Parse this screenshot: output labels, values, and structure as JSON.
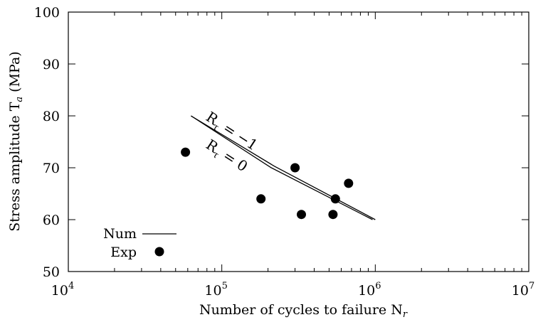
{
  "chart_data": {
    "type": "scatter",
    "xlabel": "Number of cycles to failure N",
    "xlabel_sub": "r",
    "ylabel": "Stress amplitude T",
    "ylabel_sub": "a",
    "ylabel_unit": "(MPa)",
    "x_scale": "log",
    "xlim": [
      10000,
      10000000
    ],
    "ylim": [
      50,
      100
    ],
    "x_ticks": [
      {
        "value": 10000,
        "base": "10",
        "exp": "4"
      },
      {
        "value": 100000,
        "base": "10",
        "exp": "5"
      },
      {
        "value": 1000000,
        "base": "10",
        "exp": "6"
      },
      {
        "value": 10000000,
        "base": "10",
        "exp": "7"
      }
    ],
    "y_ticks": [
      50,
      60,
      70,
      80,
      90,
      100
    ],
    "grid": false,
    "legend_position": "bottom-left",
    "series": [
      {
        "name": "Num",
        "style": "line",
        "annotation": "R = −1",
        "annotation_sub": "τ",
        "x": [
          63000,
          220000,
          1000000
        ],
        "y": [
          80.0,
          70.3,
          60.0
        ]
      },
      {
        "name": "Num",
        "style": "line",
        "annotation": "R = 0",
        "annotation_sub": "τ",
        "x": [
          63000,
          210000,
          960000
        ],
        "y": [
          80.0,
          70.0,
          60.0
        ]
      },
      {
        "name": "Exp",
        "style": "marker",
        "x": [
          58000,
          180000,
          300000,
          330000,
          530000,
          550000,
          670000
        ],
        "y": [
          73,
          64,
          70,
          61,
          61,
          64,
          67
        ]
      }
    ],
    "legend": [
      {
        "label": "Num",
        "style": "line"
      },
      {
        "label": "Exp",
        "style": "marker"
      }
    ]
  }
}
